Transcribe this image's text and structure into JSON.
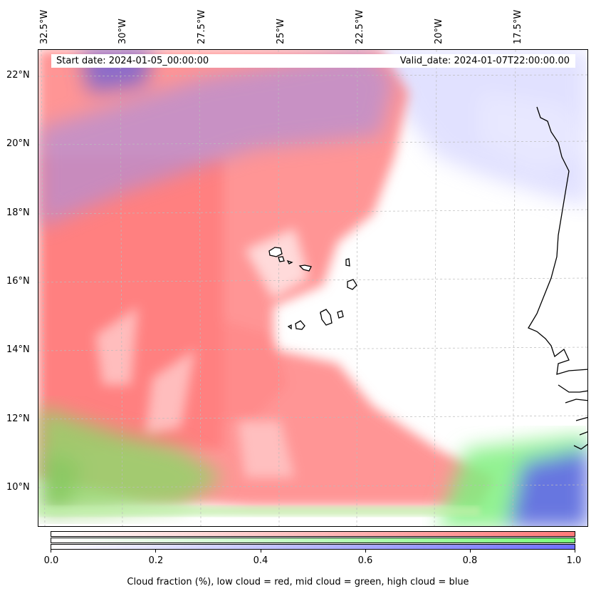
{
  "header": {
    "start_date": "Start date: 2024-01-05_00:00:00",
    "valid_date": "Valid_date: 2024-01-07T22:00:00.00"
  },
  "map": {
    "lon_labels": [
      "32.5°W",
      "30°W",
      "27.5°W",
      "25°W",
      "22.5°W",
      "20°W",
      "17.5°W"
    ],
    "lat_labels": [
      "22°N",
      "20°N",
      "18°N",
      "16°N",
      "14°N",
      "12°N",
      "10°N"
    ],
    "colors": {
      "low_cloud": "#ff7a7a",
      "mid_cloud": "#7aff7a",
      "high_cloud": "#6f6fff",
      "coastline": "#000000",
      "gridline": "#bbbbbb"
    }
  },
  "colorbar": {
    "ticks": [
      "0.0",
      "0.2",
      "0.4",
      "0.6",
      "0.8",
      "1.0"
    ],
    "caption": "Cloud fraction (%), low cloud = red, mid cloud = green, high cloud = blue"
  }
}
